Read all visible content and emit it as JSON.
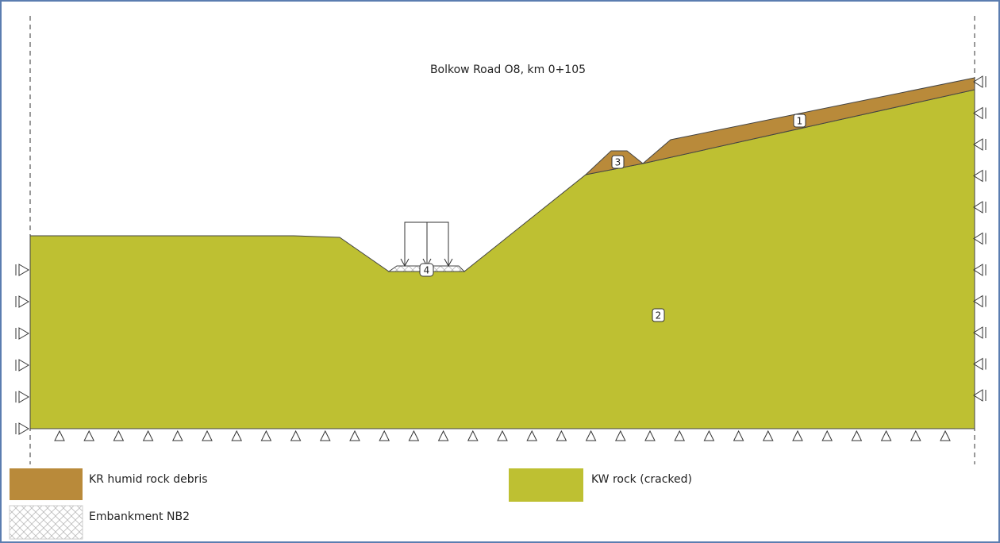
{
  "title": "Bolkow Road O8, km 0+105",
  "regions": [
    {
      "label": "1"
    },
    {
      "label": "2"
    },
    {
      "label": "3"
    },
    {
      "label": "4"
    }
  ],
  "legend": [
    {
      "label": "KR humid rock debris"
    },
    {
      "label": "Embankment NB2"
    },
    {
      "label": "KW rock (cracked)"
    }
  ]
}
